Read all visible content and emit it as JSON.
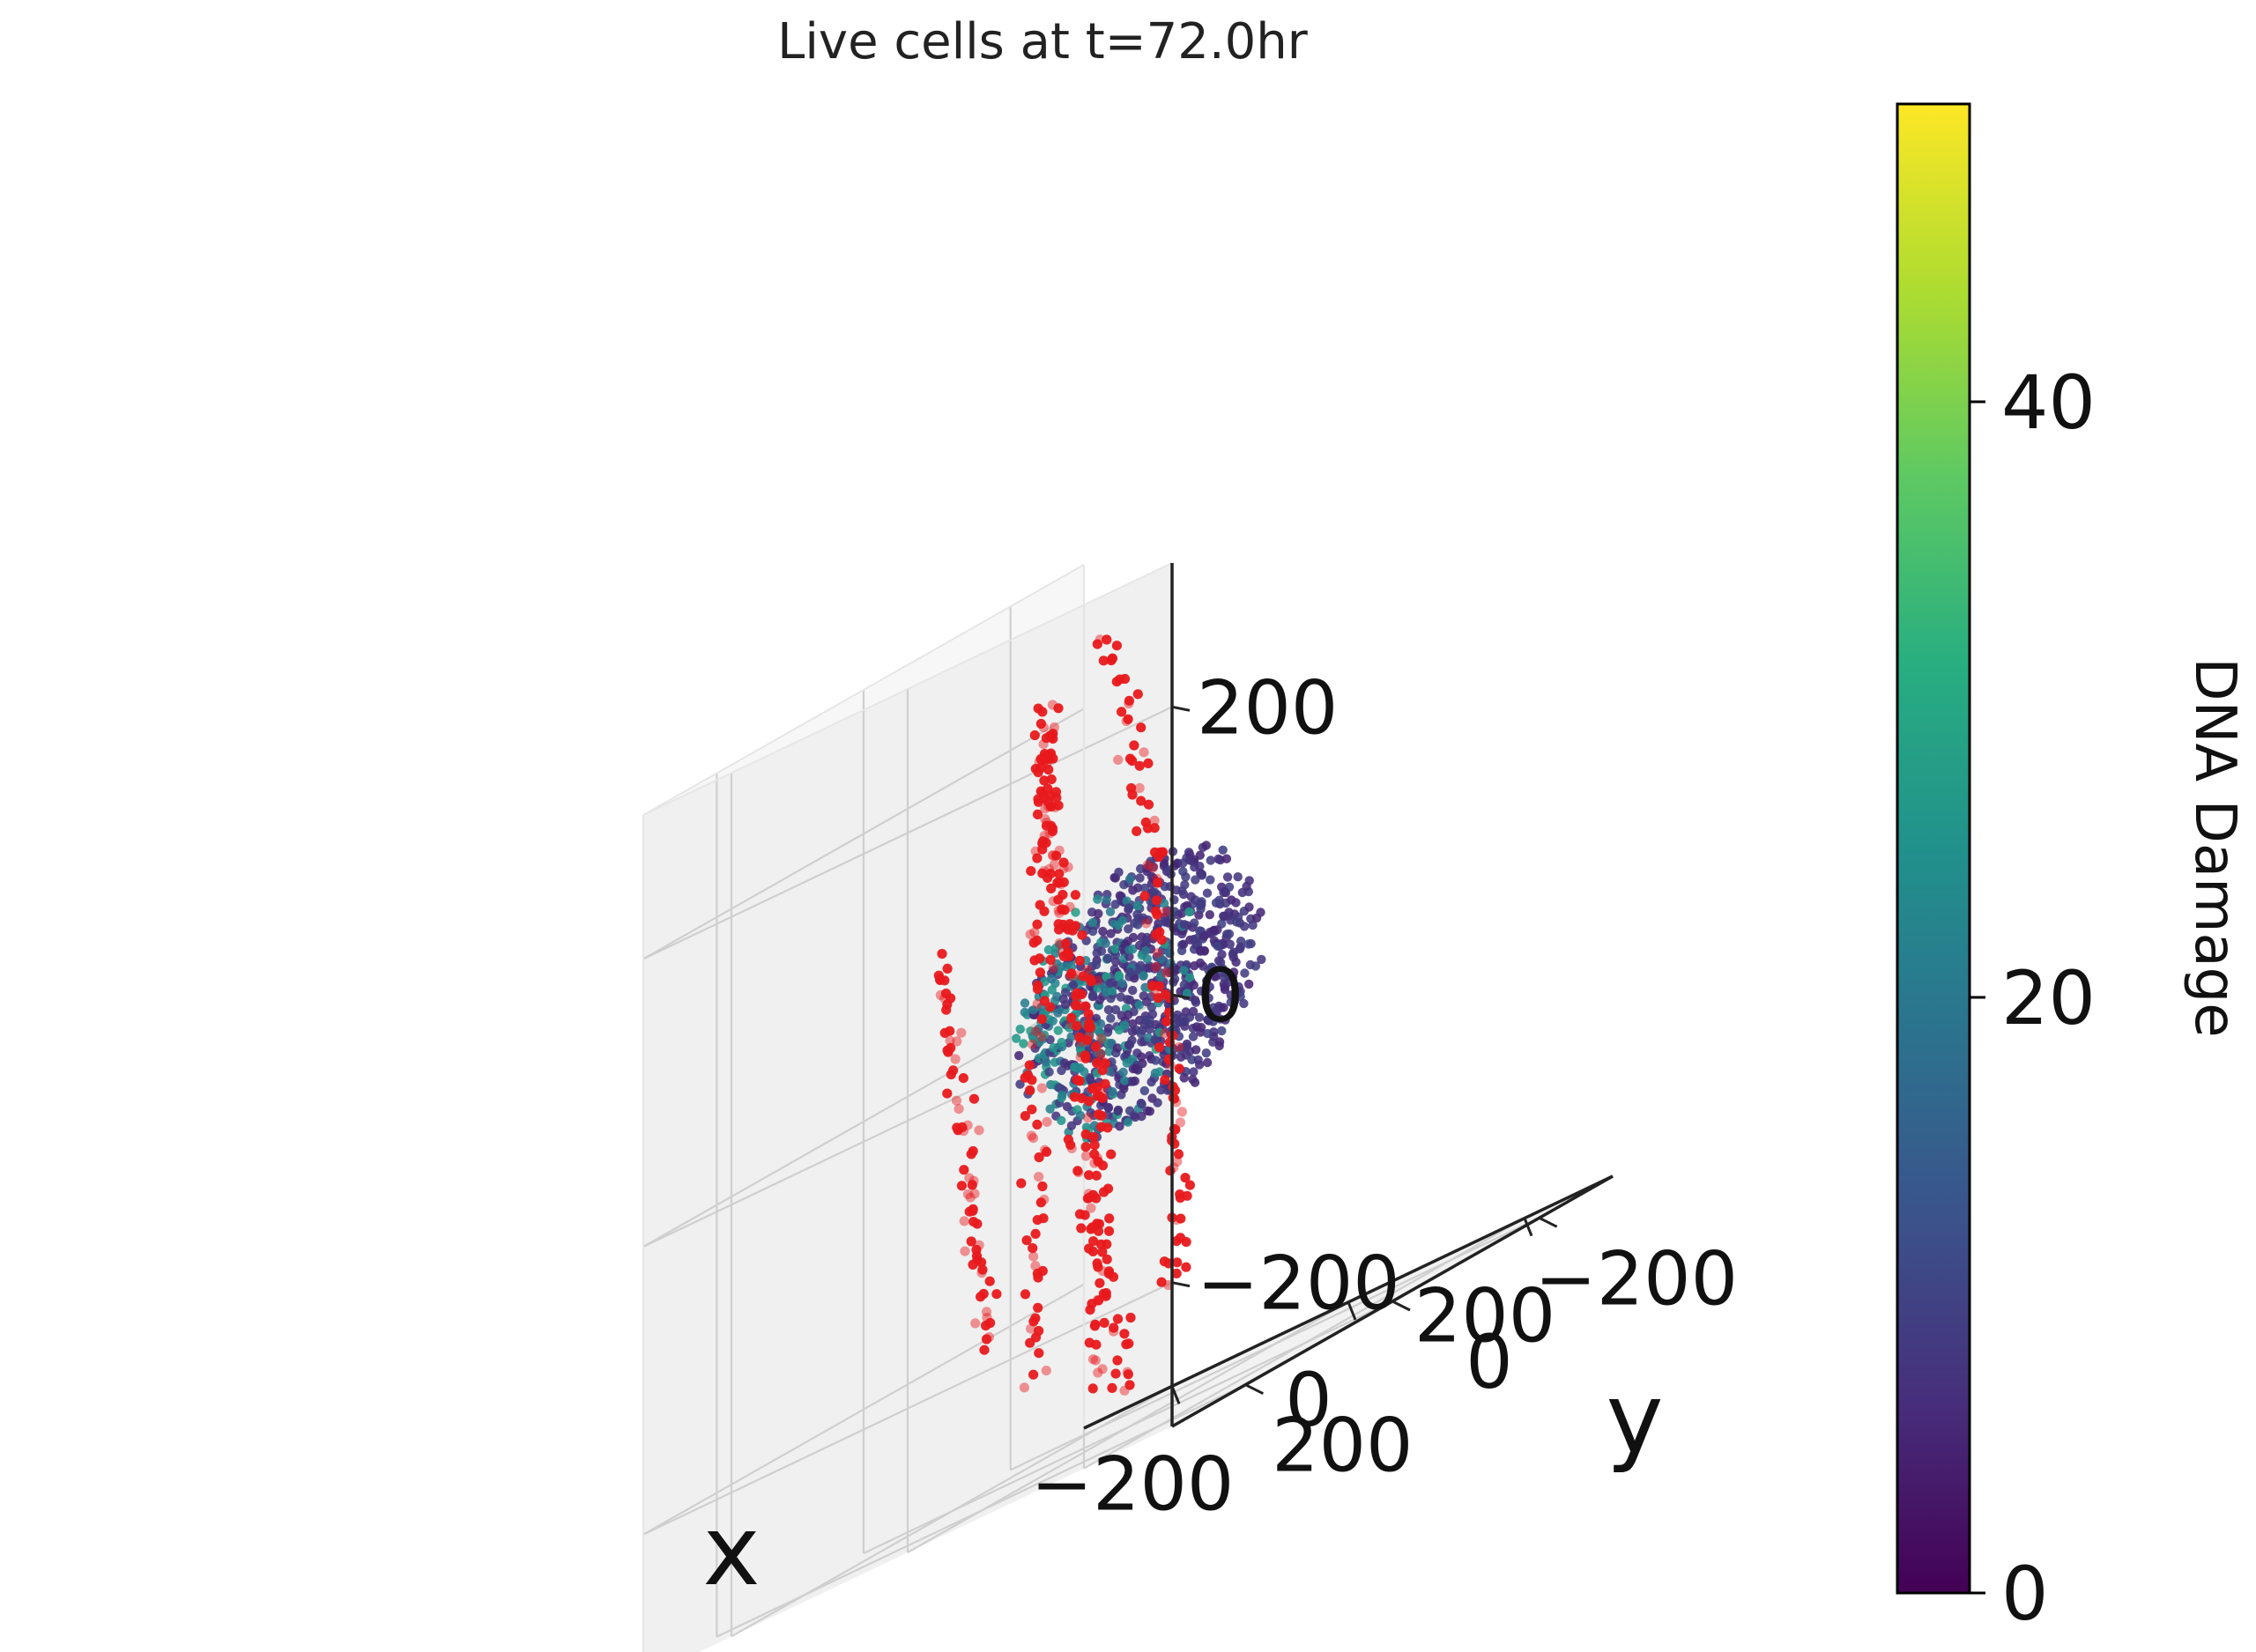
{
  "chart_data": {
    "type": "scatter",
    "projection": "3d",
    "title": "Live cells at t=72.0hr",
    "xlabel": "x",
    "ylabel": "y",
    "zlabel": "",
    "xlim": [
      -300,
      300
    ],
    "ylim": [
      -300,
      300
    ],
    "zlim": [
      -300,
      300
    ],
    "xticks": [
      {
        "value": -200,
        "label": "−200"
      },
      {
        "value": 0,
        "label": "0"
      },
      {
        "value": 200,
        "label": "200"
      }
    ],
    "yticks": [
      {
        "value": -200,
        "label": "−200"
      },
      {
        "value": 0,
        "label": "0"
      },
      {
        "value": 200,
        "label": "200"
      }
    ],
    "zticks": [
      {
        "value": -200,
        "label": "−200"
      },
      {
        "value": 0,
        "label": "0"
      },
      {
        "value": 200,
        "label": "200"
      }
    ],
    "grid": true,
    "colorbar": {
      "label": "DNA Damage",
      "range": [
        0,
        50
      ],
      "colormap": "viridis",
      "ticks": [
        {
          "value": 0,
          "label": "0"
        },
        {
          "value": 20,
          "label": "20"
        },
        {
          "value": 40,
          "label": "40"
        }
      ]
    },
    "series": [
      {
        "kind": "tumor-cluster",
        "marker_color": "viridis(DNA Damage)",
        "center": [
          30,
          20,
          0
        ],
        "radius": 110,
        "count": 900,
        "damage_range": [
          5,
          28
        ]
      },
      {
        "kind": "migrating-cells",
        "marker_color": "#e8191c",
        "paths": [
          [
            [
              -160,
              60,
              90
            ],
            [
              -150,
              55,
              20
            ],
            [
              -140,
              50,
              -60
            ],
            [
              -135,
              45,
              -130
            ],
            [
              -120,
              40,
              -200
            ]
          ],
          [
            [
              -70,
              40,
              210
            ],
            [
              -60,
              30,
              120
            ],
            [
              -40,
              20,
              40
            ],
            [
              -20,
              15,
              -40
            ],
            [
              -30,
              0,
              -120
            ],
            [
              -40,
              -20,
              -200
            ],
            [
              -30,
              -40,
              -280
            ]
          ],
          [
            [
              -30,
              80,
              230
            ],
            [
              -35,
              70,
              150
            ],
            [
              -25,
              60,
              70
            ],
            [
              -10,
              50,
              -10
            ],
            [
              -20,
              40,
              -90
            ],
            [
              -10,
              30,
              -170
            ],
            [
              -20,
              20,
              -260
            ]
          ],
          [
            [
              20,
              120,
              230
            ],
            [
              0,
              110,
              150
            ],
            [
              -20,
              100,
              60
            ],
            [
              -30,
              90,
              -40
            ],
            [
              -40,
              80,
              -140
            ],
            [
              -50,
              70,
              -240
            ]
          ],
          [
            [
              100,
              150,
              270
            ],
            [
              120,
              140,
              180
            ],
            [
              140,
              130,
              100
            ],
            [
              140,
              130,
              20
            ],
            [
              150,
              120,
              -60
            ],
            [
              150,
              110,
              -140
            ],
            [
              140,
              100,
              -220
            ]
          ]
        ]
      }
    ]
  }
}
